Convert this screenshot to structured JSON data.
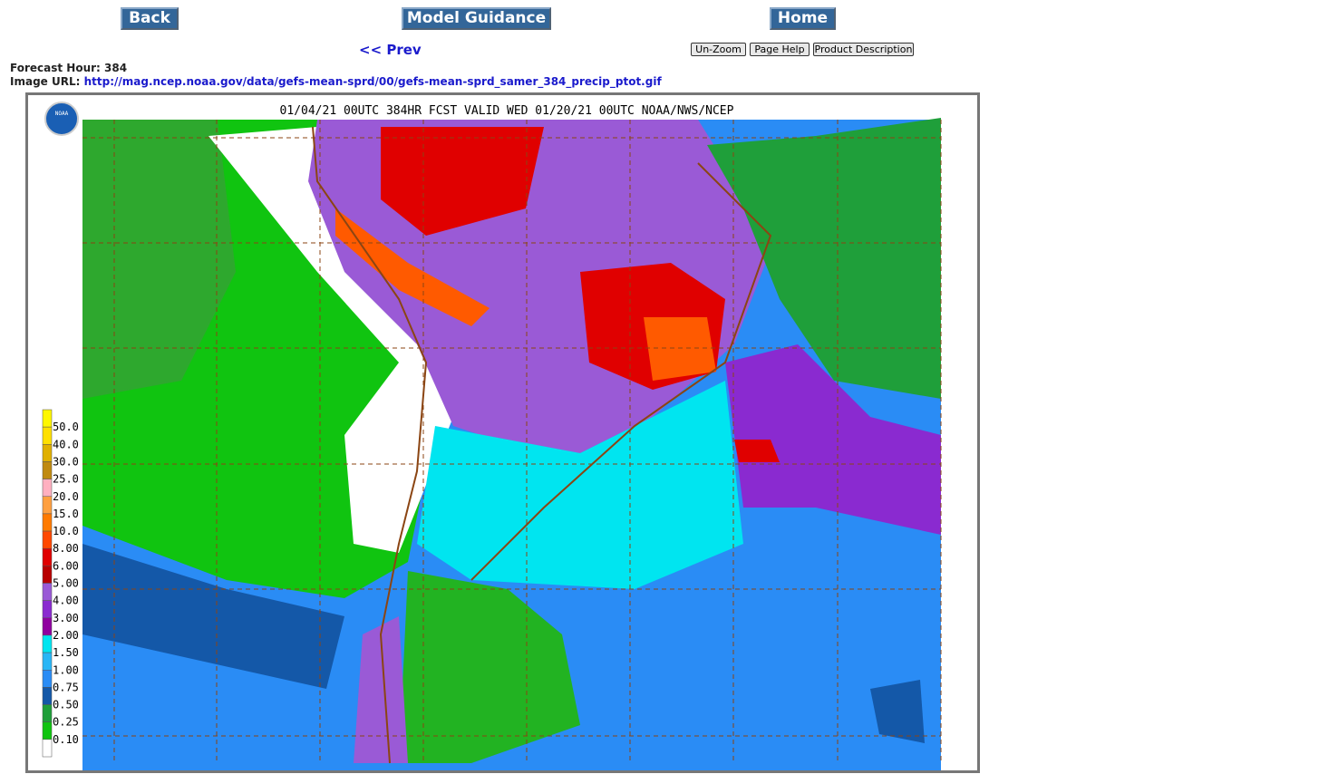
{
  "nav": {
    "back": "Back",
    "model_guidance": "Model Guidance",
    "home": "Home",
    "prev": "<< Prev",
    "unzoom": "Un-Zoom",
    "page_help": "Page Help",
    "product_description": "Product Description"
  },
  "info": {
    "forecast_hour_label": "Forecast Hour:",
    "forecast_hour": "384",
    "image_url_label": "Image URL:",
    "image_url": "http://mag.ncep.noaa.gov/data/gefs-mean-sprd/00/gefs-mean-sprd_samer_384_precip_ptot.gif"
  },
  "map": {
    "title": "01/04/21 00UTC 384HR FCST VALID WED 01/20/21 00UTC NOAA/NWS/NCEP",
    "logo": "NOAA",
    "legend": [
      "50.0",
      "40.0",
      "30.0",
      "25.0",
      "20.0",
      "15.0",
      "10.0",
      "8.00",
      "6.00",
      "5.00",
      "4.00",
      "3.00",
      "2.00",
      "1.50",
      "1.00",
      "0.75",
      "0.50",
      "0.25",
      "0.10"
    ]
  }
}
